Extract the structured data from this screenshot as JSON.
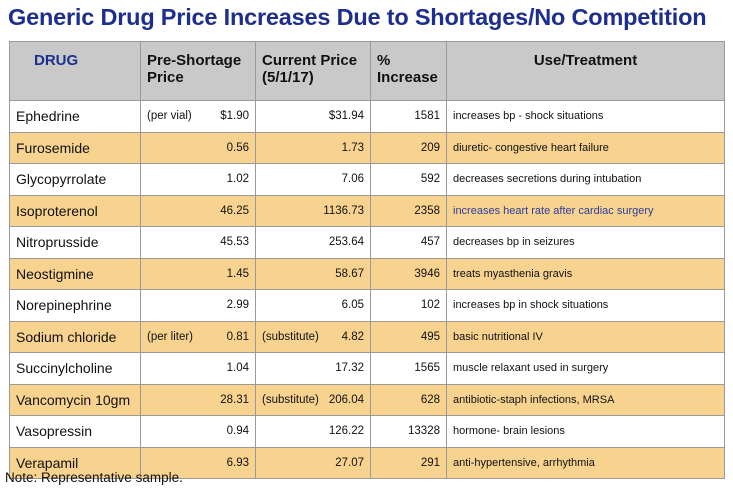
{
  "title": "Generic Drug Price Increases Due to Shortages/No Competition",
  "table": {
    "headers": {
      "drug": "DRUG",
      "pre_price_1": "Pre-Shortage",
      "pre_price_2": "Price",
      "current_price_1": "Current Price",
      "current_price_2": "(5/1/17)",
      "increase_1": "%",
      "increase_2": "Increase",
      "use": "Use/Treatment"
    },
    "rows": [
      {
        "drug": "Ephedrine",
        "pre_note": "(per vial)",
        "pre_price": "$1.90",
        "current_note": "",
        "current_price": "$31.94",
        "increase": "1581",
        "use": "increases bp - shock situations",
        "highlight": false
      },
      {
        "drug": "Furosemide",
        "pre_note": "",
        "pre_price": "0.56",
        "current_note": "",
        "current_price": "1.73",
        "increase": "209",
        "use": "diuretic- congestive heart failure",
        "highlight": true
      },
      {
        "drug": "Glycopyrrolate",
        "pre_note": "",
        "pre_price": "1.02",
        "current_note": "",
        "current_price": "7.06",
        "increase": "592",
        "use": "decreases secretions during intubation",
        "highlight": false
      },
      {
        "drug": "Isoproterenol",
        "pre_note": "",
        "pre_price": "46.25",
        "current_note": "",
        "current_price": "1136.73",
        "increase": "2358",
        "use": "increases heart rate after cardiac surgery",
        "highlight": true
      },
      {
        "drug": "Nitroprusside",
        "pre_note": "",
        "pre_price": "45.53",
        "current_note": "",
        "current_price": "253.64",
        "increase": "457",
        "use": "decreases bp in seizures",
        "highlight": false
      },
      {
        "drug": "Neostigmine",
        "pre_note": "",
        "pre_price": "1.45",
        "current_note": "",
        "current_price": "58.67",
        "increase": "3946",
        "use": "treats myasthenia gravis",
        "highlight": true
      },
      {
        "drug": "Norepinephrine",
        "pre_note": "",
        "pre_price": "2.99",
        "current_note": "",
        "current_price": "6.05",
        "increase": "102",
        "use": "increases bp in shock situations",
        "highlight": false
      },
      {
        "drug": "Sodium chloride",
        "pre_note": "(per liter)",
        "pre_price": "0.81",
        "current_note": "(substitute)",
        "current_price": "4.82",
        "increase": "495",
        "use": "basic nutritional IV",
        "highlight": true
      },
      {
        "drug": "Succinylcholine",
        "pre_note": "",
        "pre_price": "1.04",
        "current_note": "",
        "current_price": "17.32",
        "increase": "1565",
        "use": "muscle relaxant used in surgery",
        "highlight": false
      },
      {
        "drug": "Vancomycin 10gm",
        "pre_note": "",
        "pre_price": "28.31",
        "current_note": "(substitute)",
        "current_price": "206.04",
        "increase": "628",
        "use": "antibiotic-staph infections, MRSA",
        "highlight": true
      },
      {
        "drug": "Vasopressin",
        "pre_note": "",
        "pre_price": "0.94",
        "current_note": "",
        "current_price": "126.22",
        "increase": "13328",
        "use": "hormone- brain lesions",
        "highlight": false
      },
      {
        "drug": "Verapamil",
        "pre_note": "",
        "pre_price": "6.93",
        "current_note": "",
        "current_price": "27.07",
        "increase": "291",
        "use": "anti-hypertensive, arrhythmia",
        "highlight": true
      }
    ]
  },
  "footnote": "Note: Representative sample.",
  "colors": {
    "title": "#1d2e8f",
    "header_bg": "#c9c9c9",
    "highlight_row": "#f8d28f",
    "isoproterenol_use_text": "#2b3d9e"
  }
}
